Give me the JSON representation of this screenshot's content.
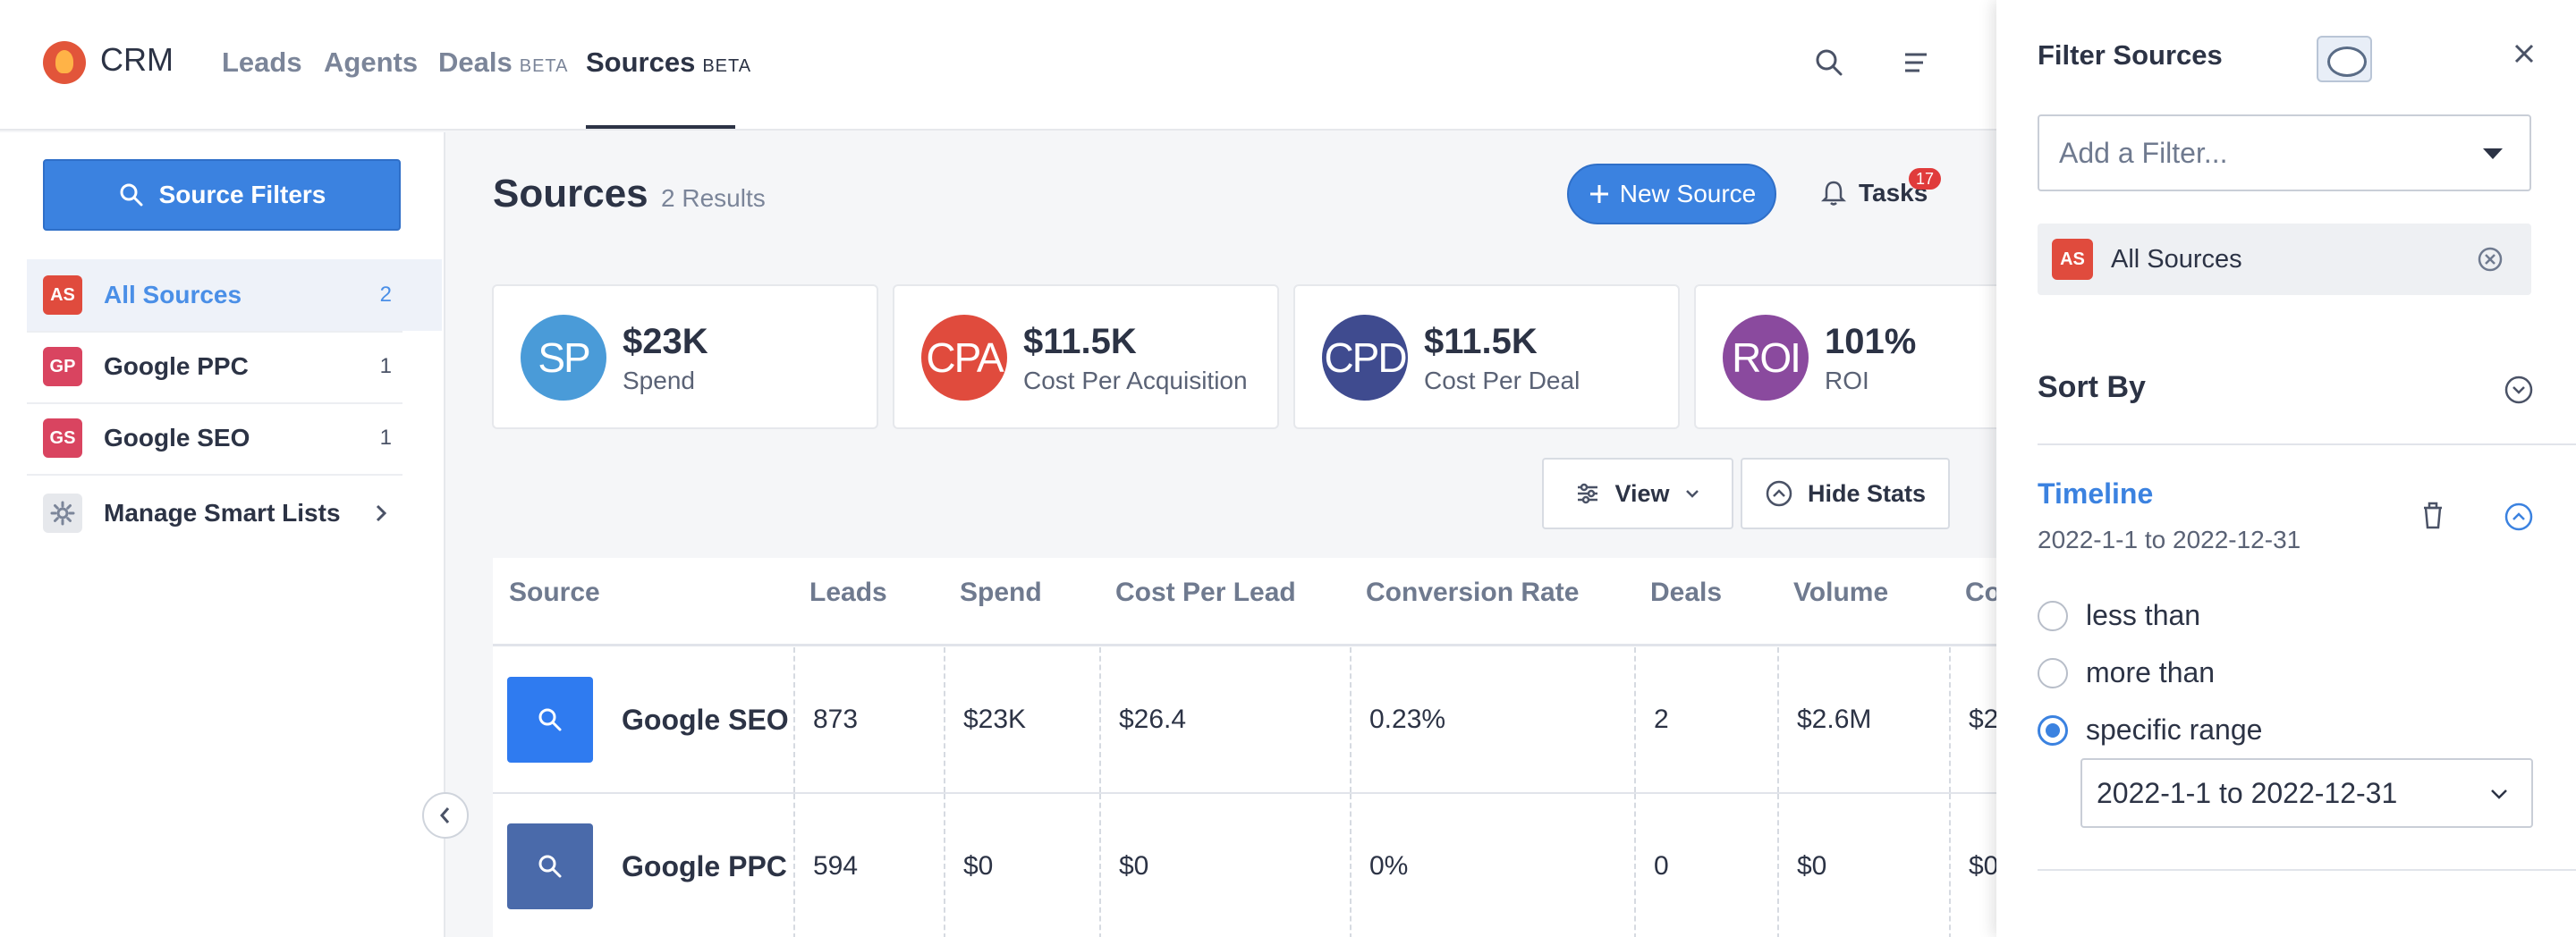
{
  "nav": {
    "brand": "CRM",
    "tabs": [
      {
        "label": "Leads",
        "beta": ""
      },
      {
        "label": "Agents",
        "beta": ""
      },
      {
        "label": "Deals",
        "beta": "BETA"
      },
      {
        "label": "Sources",
        "beta": "BETA"
      }
    ]
  },
  "sidebar": {
    "filters_button": "Source Filters",
    "items": [
      {
        "badge": "AS",
        "label": "All Sources",
        "count": "2",
        "color": "#e04b3d"
      },
      {
        "badge": "GP",
        "label": "Google PPC",
        "count": "1",
        "color": "#d94460"
      },
      {
        "badge": "GS",
        "label": "Google SEO",
        "count": "1",
        "color": "#d94460"
      }
    ],
    "manage": "Manage Smart Lists"
  },
  "main": {
    "title": "Sources",
    "results": "2 Results",
    "new_button": "New Source",
    "tasks_label": "Tasks",
    "tasks_count": "17",
    "view_button": "View",
    "hide_stats_button": "Hide Stats"
  },
  "stats": [
    {
      "abbr": "SP",
      "value": "$23K",
      "label": "Spend",
      "color": "#4a9bd8"
    },
    {
      "abbr": "CPA",
      "value": "$11.5K",
      "label": "Cost Per Acquisition",
      "color": "#e04b3d"
    },
    {
      "abbr": "CPD",
      "value": "$11.5K",
      "label": "Cost Per Deal",
      "color": "#3f4b8f"
    },
    {
      "abbr": "ROI",
      "value": "101%",
      "label": "ROI",
      "color": "#8a4a9e"
    }
  ],
  "table": {
    "headers": [
      "Source",
      "Leads",
      "Spend",
      "Cost Per Lead",
      "Conversion Rate",
      "Deals",
      "Volume",
      "Co"
    ],
    "rows": [
      {
        "name": "Google SEO",
        "icon_color": "#2f7bf0",
        "cells": [
          "873",
          "$23K",
          "$26.4",
          "0.23%",
          "2",
          "$2.6M",
          "$2"
        ]
      },
      {
        "name": "Google PPC",
        "icon_color": "#4a6aaa",
        "cells": [
          "594",
          "$0",
          "$0",
          "0%",
          "0",
          "$0",
          "$0"
        ]
      }
    ]
  },
  "panel": {
    "title": "Filter Sources",
    "add_filter_placeholder": "Add a Filter...",
    "chip": {
      "badge": "AS",
      "label": "All Sources"
    },
    "sort_by": "Sort By",
    "timeline": {
      "title": "Timeline",
      "range": "2022-1-1 to 2022-12-31",
      "options": [
        "less than",
        "more than",
        "specific range"
      ],
      "selected": "specific range",
      "range_value": "2022-1-1 to 2022-12-31"
    }
  }
}
